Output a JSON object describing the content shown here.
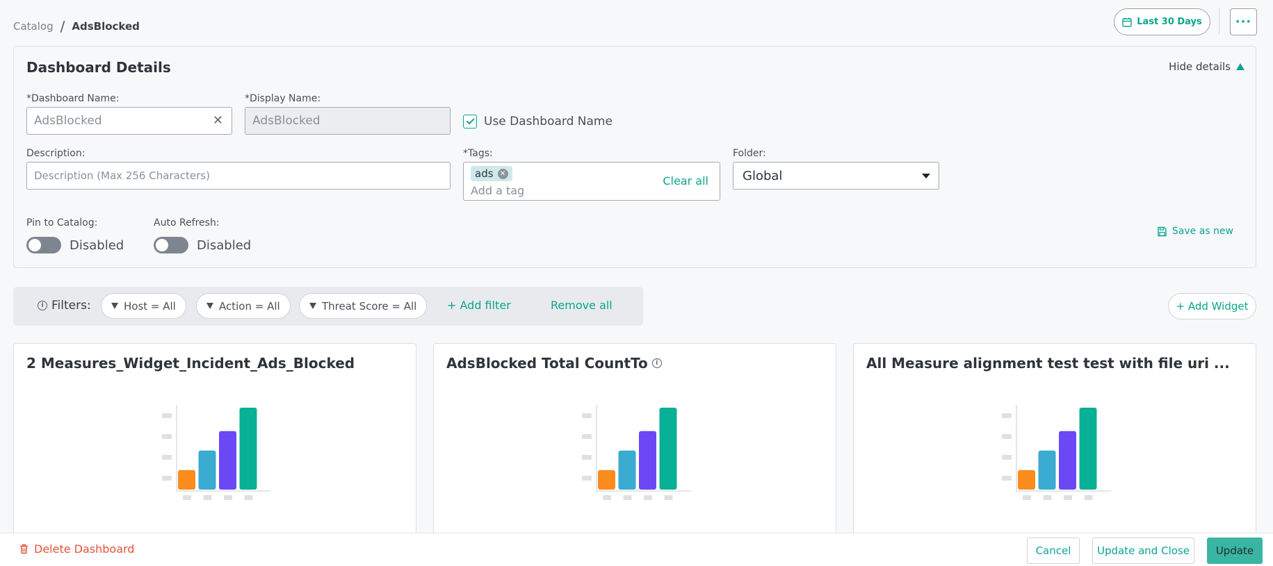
{
  "breadcrumb": {
    "root": "Catalog",
    "separator": "/",
    "current": "AdsBlocked"
  },
  "header": {
    "date_range": "Last 30 Days",
    "more_label": "···"
  },
  "details": {
    "title": "Dashboard Details",
    "hide_label": "Hide details",
    "dashboard_name_label": "*Dashboard Name:",
    "dashboard_name_value": "AdsBlocked",
    "display_name_label": "*Display Name:",
    "display_name_value": "AdsBlocked",
    "use_dashboard_name_label": "Use Dashboard Name",
    "use_dashboard_name_checked": true,
    "description_label": "Description:",
    "description_placeholder": "Description (Max 256 Characters)",
    "tags_label": "*Tags:",
    "tags": [
      "ads"
    ],
    "tag_placeholder": "Add a tag",
    "tags_clear_label": "Clear all",
    "folder_label": "Folder:",
    "folder_value": "Global",
    "pin_label": "Pin to Catalog:",
    "pin_state": "Disabled",
    "refresh_label": "Auto Refresh:",
    "refresh_state": "Disabled",
    "save_new_label": "Save as new"
  },
  "filters": {
    "label": "Filters:",
    "items": [
      "Host = All",
      "Action = All",
      "Threat Score = All"
    ],
    "add_label": "+ Add filter",
    "remove_label": "Remove all"
  },
  "add_widget_label": "+ Add Widget",
  "widgets": [
    {
      "title": "2 Measures_Widget_Incident_Ads_Blocked",
      "info": false
    },
    {
      "title": "AdsBlocked Total CountTo",
      "info": true
    },
    {
      "title": "All Measure alignment test test with file uri ...",
      "info": false
    }
  ],
  "placeholder_chart": {
    "values": [
      1,
      2,
      3,
      4.2
    ],
    "colors": [
      "#fa8c1e",
      "#3aabd1",
      "#6c47f5",
      "#08b096"
    ]
  },
  "footer": {
    "delete_label": "Delete Dashboard",
    "cancel_label": "Cancel",
    "update_close_label": "Update and Close",
    "update_label": "Update"
  },
  "colors": {
    "accent": "#0aa58e",
    "danger": "#e2533b"
  }
}
